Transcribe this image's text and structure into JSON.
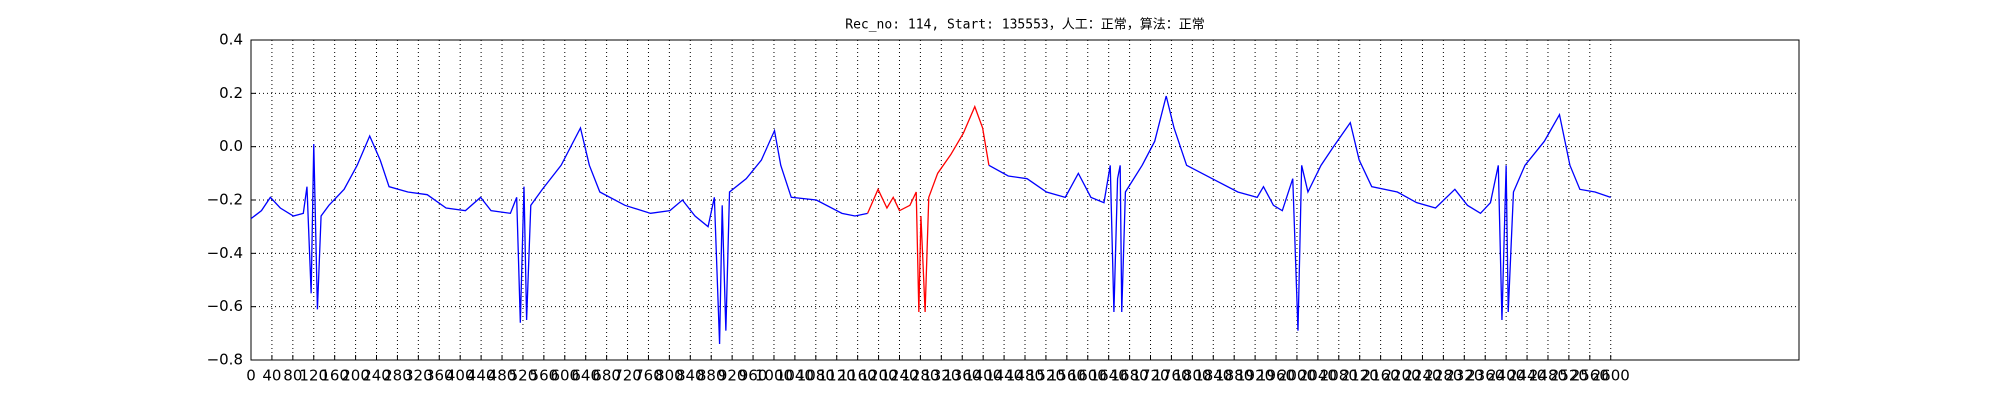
{
  "chart_data": {
    "type": "line",
    "title": "Rec_no: 114, Start: 135553，人工：正常，算法：正常",
    "xlim": [
      0,
      2960
    ],
    "ylim": [
      -0.8,
      0.4
    ],
    "xticks": [
      0,
      40,
      80,
      120,
      160,
      200,
      240,
      280,
      320,
      360,
      400,
      440,
      480,
      520,
      560,
      600,
      640,
      680,
      720,
      760,
      800,
      840,
      880,
      920,
      960,
      1000,
      1040,
      1080,
      1120,
      1160,
      1200,
      1240,
      1280,
      1320,
      1360,
      1400,
      1440,
      1480,
      1520,
      1560,
      1600,
      1640,
      1680,
      1720,
      1760,
      1800,
      1840,
      1880,
      1920,
      1960,
      2000,
      2040,
      2080,
      2120,
      2160,
      2200,
      2240,
      2280,
      2320,
      2360,
      2400,
      2440,
      2480,
      2520,
      2560,
      2600
    ],
    "yticks": [
      {
        "value": -0.8,
        "label": "−0.8"
      },
      {
        "value": -0.6,
        "label": "−0.6"
      },
      {
        "value": -0.4,
        "label": "−0.4"
      },
      {
        "value": -0.2,
        "label": "−0.2"
      },
      {
        "value": 0,
        "label": "0.0"
      },
      0.2,
      0.4
    ],
    "grid": true,
    "series": [
      {
        "color": "#0000ff",
        "x": [
          0,
          20,
          37,
          56,
          81,
          100,
          107,
          115,
          120,
          127,
          134,
          149,
          178,
          203,
          227,
          247,
          264,
          300,
          337,
          373,
          410,
          439,
          459,
          496,
          508,
          515,
          522,
          527,
          535,
          557,
          593,
          630,
          647,
          667,
          715,
          764,
          801,
          825,
          849,
          874,
          886,
          896,
          901,
          908,
          915,
          947,
          976,
          1001,
          1013,
          1033,
          1081,
          1130,
          1155,
          1179
        ],
        "values": [
          -0.27,
          -0.24,
          -0.19,
          -0.23,
          -0.26,
          -0.25,
          -0.15,
          -0.55,
          0.01,
          -0.61,
          -0.26,
          -0.22,
          -0.16,
          -0.07,
          0.04,
          -0.05,
          -0.15,
          -0.17,
          -0.18,
          -0.23,
          -0.24,
          -0.19,
          -0.24,
          -0.25,
          -0.19,
          -0.66,
          -0.15,
          -0.65,
          -0.22,
          -0.16,
          -0.07,
          0.07,
          -0.07,
          -0.17,
          -0.22,
          -0.25,
          -0.24,
          -0.2,
          -0.26,
          -0.3,
          -0.19,
          -0.74,
          -0.22,
          -0.69,
          -0.17,
          -0.12,
          -0.05,
          0.06,
          -0.07,
          -0.19,
          -0.2,
          -0.25,
          -0.26,
          -0.25
        ]
      },
      {
        "color": "#ff0000",
        "x": [
          1179,
          1199,
          1216,
          1228,
          1240,
          1260,
          1272,
          1277,
          1281,
          1289,
          1296,
          1313,
          1338,
          1362,
          1384,
          1399,
          1411
        ],
        "values": [
          -0.25,
          -0.16,
          -0.23,
          -0.19,
          -0.24,
          -0.22,
          -0.17,
          -0.62,
          -0.26,
          -0.62,
          -0.19,
          -0.1,
          -0.03,
          0.05,
          0.15,
          0.07,
          -0.07
        ]
      },
      {
        "color": "#0000ff",
        "x": [
          1411,
          1448,
          1484,
          1521,
          1557,
          1582,
          1606,
          1631,
          1643,
          1650,
          1657,
          1662,
          1665,
          1672,
          1704,
          1728,
          1750,
          1765,
          1789,
          1838,
          1887,
          1924,
          1936,
          1955,
          1972,
          1992,
          2002,
          2009,
          2021,
          2046,
          2070,
          2102,
          2119,
          2143,
          2192,
          2229,
          2265,
          2302,
          2326,
          2351,
          2370,
          2385,
          2392,
          2400,
          2404,
          2414,
          2436,
          2473,
          2502,
          2522,
          2541,
          2570,
          2600
        ],
        "values": [
          -0.07,
          -0.11,
          -0.12,
          -0.17,
          -0.19,
          -0.1,
          -0.19,
          -0.21,
          -0.07,
          -0.62,
          -0.12,
          -0.07,
          -0.62,
          -0.17,
          -0.07,
          0.02,
          0.19,
          0.07,
          -0.07,
          -0.12,
          -0.17,
          -0.19,
          -0.15,
          -0.22,
          -0.24,
          -0.12,
          -0.69,
          -0.07,
          -0.17,
          -0.07,
          0,
          0.09,
          -0.05,
          -0.15,
          -0.17,
          -0.21,
          -0.23,
          -0.16,
          -0.22,
          -0.25,
          -0.21,
          -0.07,
          -0.65,
          -0.07,
          -0.62,
          -0.17,
          -0.07,
          0.02,
          0.12,
          -0.07,
          -0.16,
          -0.17,
          -0.19
        ]
      }
    ]
  }
}
